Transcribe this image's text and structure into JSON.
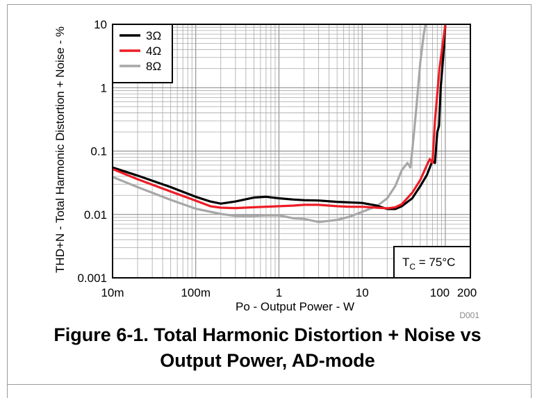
{
  "chart_data": {
    "type": "line",
    "xlabel": "Po - Output Power - W",
    "ylabel": "THD+N - Total Harmonic Distortion + Noise - %",
    "xscale": "log",
    "yscale": "log",
    "xlim": [
      0.01,
      200
    ],
    "ylim": [
      0.001,
      10
    ],
    "x_ticks": [
      {
        "value": 0.01,
        "label": "10m"
      },
      {
        "value": 0.1,
        "label": "100m"
      },
      {
        "value": 1,
        "label": "1"
      },
      {
        "value": 10,
        "label": "10"
      },
      {
        "value": 100,
        "label": "100"
      },
      {
        "value": 200,
        "label": "200"
      }
    ],
    "y_ticks": [
      {
        "value": 10,
        "label": "10"
      },
      {
        "value": 1,
        "label": "1"
      },
      {
        "value": 0.1,
        "label": "0.1"
      },
      {
        "value": 0.01,
        "label": "0.01"
      },
      {
        "value": 0.001,
        "label": "0.001"
      }
    ],
    "grid": true,
    "legend_position": "top-left",
    "annotation": {
      "main": "T",
      "sub": "C",
      "rest": " = 75°C"
    },
    "source_id": "D001",
    "series": [
      {
        "name": "3Ω",
        "color": "#000000",
        "points": [
          [
            0.01,
            0.055
          ],
          [
            0.02,
            0.041
          ],
          [
            0.05,
            0.027
          ],
          [
            0.1,
            0.019
          ],
          [
            0.15,
            0.016
          ],
          [
            0.2,
            0.0148
          ],
          [
            0.3,
            0.016
          ],
          [
            0.5,
            0.0185
          ],
          [
            0.7,
            0.019
          ],
          [
            1,
            0.018
          ],
          [
            1.5,
            0.0172
          ],
          [
            2,
            0.0168
          ],
          [
            3,
            0.0166
          ],
          [
            5,
            0.0158
          ],
          [
            7,
            0.0155
          ],
          [
            10,
            0.0152
          ],
          [
            15,
            0.0138
          ],
          [
            20,
            0.0122
          ],
          [
            25,
            0.0122
          ],
          [
            30,
            0.0135
          ],
          [
            40,
            0.018
          ],
          [
            50,
            0.028
          ],
          [
            60,
            0.042
          ],
          [
            70,
            0.07
          ],
          [
            75,
            0.065
          ],
          [
            80,
            0.2
          ],
          [
            84,
            0.25
          ],
          [
            88,
            1.0
          ],
          [
            95,
            3.5
          ],
          [
            100,
            10
          ]
        ]
      },
      {
        "name": "4Ω",
        "color": "#ee1c25",
        "points": [
          [
            0.01,
            0.052
          ],
          [
            0.02,
            0.036
          ],
          [
            0.05,
            0.023
          ],
          [
            0.1,
            0.0165
          ],
          [
            0.15,
            0.0135
          ],
          [
            0.2,
            0.0128
          ],
          [
            0.3,
            0.0126
          ],
          [
            0.5,
            0.013
          ],
          [
            1,
            0.0135
          ],
          [
            1.5,
            0.0138
          ],
          [
            2,
            0.0142
          ],
          [
            3,
            0.0142
          ],
          [
            5,
            0.0135
          ],
          [
            7,
            0.0132
          ],
          [
            10,
            0.0132
          ],
          [
            15,
            0.0128
          ],
          [
            20,
            0.0125
          ],
          [
            25,
            0.013
          ],
          [
            30,
            0.0145
          ],
          [
            40,
            0.022
          ],
          [
            50,
            0.035
          ],
          [
            60,
            0.06
          ],
          [
            65,
            0.075
          ],
          [
            70,
            0.065
          ],
          [
            75,
            0.3
          ],
          [
            80,
            0.8
          ],
          [
            85,
            2.0
          ],
          [
            95,
            6
          ],
          [
            100,
            10
          ]
        ]
      },
      {
        "name": "8Ω",
        "color": "#a7a7a7",
        "points": [
          [
            0.01,
            0.039
          ],
          [
            0.02,
            0.027
          ],
          [
            0.05,
            0.017
          ],
          [
            0.1,
            0.0123
          ],
          [
            0.2,
            0.0102
          ],
          [
            0.3,
            0.0095
          ],
          [
            0.5,
            0.0095
          ],
          [
            0.7,
            0.0097
          ],
          [
            1,
            0.0097
          ],
          [
            1.5,
            0.0087
          ],
          [
            2,
            0.0085
          ],
          [
            3,
            0.0076
          ],
          [
            5,
            0.0082
          ],
          [
            7,
            0.0092
          ],
          [
            10,
            0.011
          ],
          [
            15,
            0.0135
          ],
          [
            20,
            0.018
          ],
          [
            25,
            0.028
          ],
          [
            30,
            0.05
          ],
          [
            35,
            0.065
          ],
          [
            38,
            0.055
          ],
          [
            40,
            0.1
          ],
          [
            45,
            0.5
          ],
          [
            50,
            2.5
          ],
          [
            55,
            7
          ],
          [
            58,
            10
          ]
        ]
      }
    ]
  },
  "figure": {
    "caption_line1": "Figure 6-1. Total Harmonic Distortion + Noise vs",
    "caption_line2": "Output Power, AD-mode"
  }
}
